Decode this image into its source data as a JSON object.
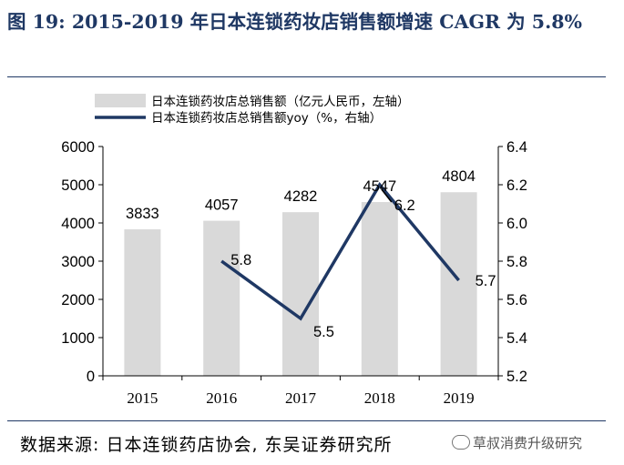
{
  "header": {
    "title": "图 19: 2015-2019 年日本连锁药妆店销售额增速 CAGR 为 5.8%"
  },
  "footer": {
    "source": "数据来源: 日本连锁药店协会, 东吴证券研究所",
    "watermark": "草叔消费升级研究"
  },
  "colors": {
    "bar": "#d9d9d9",
    "line": "#1f3864",
    "title": "#1f3864"
  },
  "chart_data": {
    "type": "bar",
    "title": "",
    "categories": [
      "2015",
      "2016",
      "2017",
      "2018",
      "2019"
    ],
    "series": [
      {
        "name": "日本连锁药妆店总销售额（亿元人民币，左轴）",
        "kind": "bar",
        "axis": "left",
        "values": [
          3833,
          4057,
          4282,
          4547,
          4804
        ],
        "labels": [
          "3833",
          "4057",
          "4282",
          "4547",
          "4804"
        ]
      },
      {
        "name": "日本连锁药妆店总销售额yoy（%，右轴）",
        "kind": "line",
        "axis": "right",
        "values": [
          null,
          5.8,
          5.5,
          6.2,
          5.7
        ],
        "labels": [
          "",
          "5.8",
          "5.5",
          "6.2",
          "5.7"
        ]
      }
    ],
    "left_axis": {
      "ylim": [
        0,
        6000
      ],
      "ticks": [
        "0",
        "1000",
        "2000",
        "3000",
        "4000",
        "5000",
        "6000"
      ]
    },
    "right_axis": {
      "ylim": [
        5.2,
        6.4
      ],
      "ticks": [
        "5.2",
        "5.4",
        "5.6",
        "5.8",
        "6.0",
        "6.2",
        "6.4"
      ]
    },
    "legend": "top-left",
    "grid": false
  }
}
